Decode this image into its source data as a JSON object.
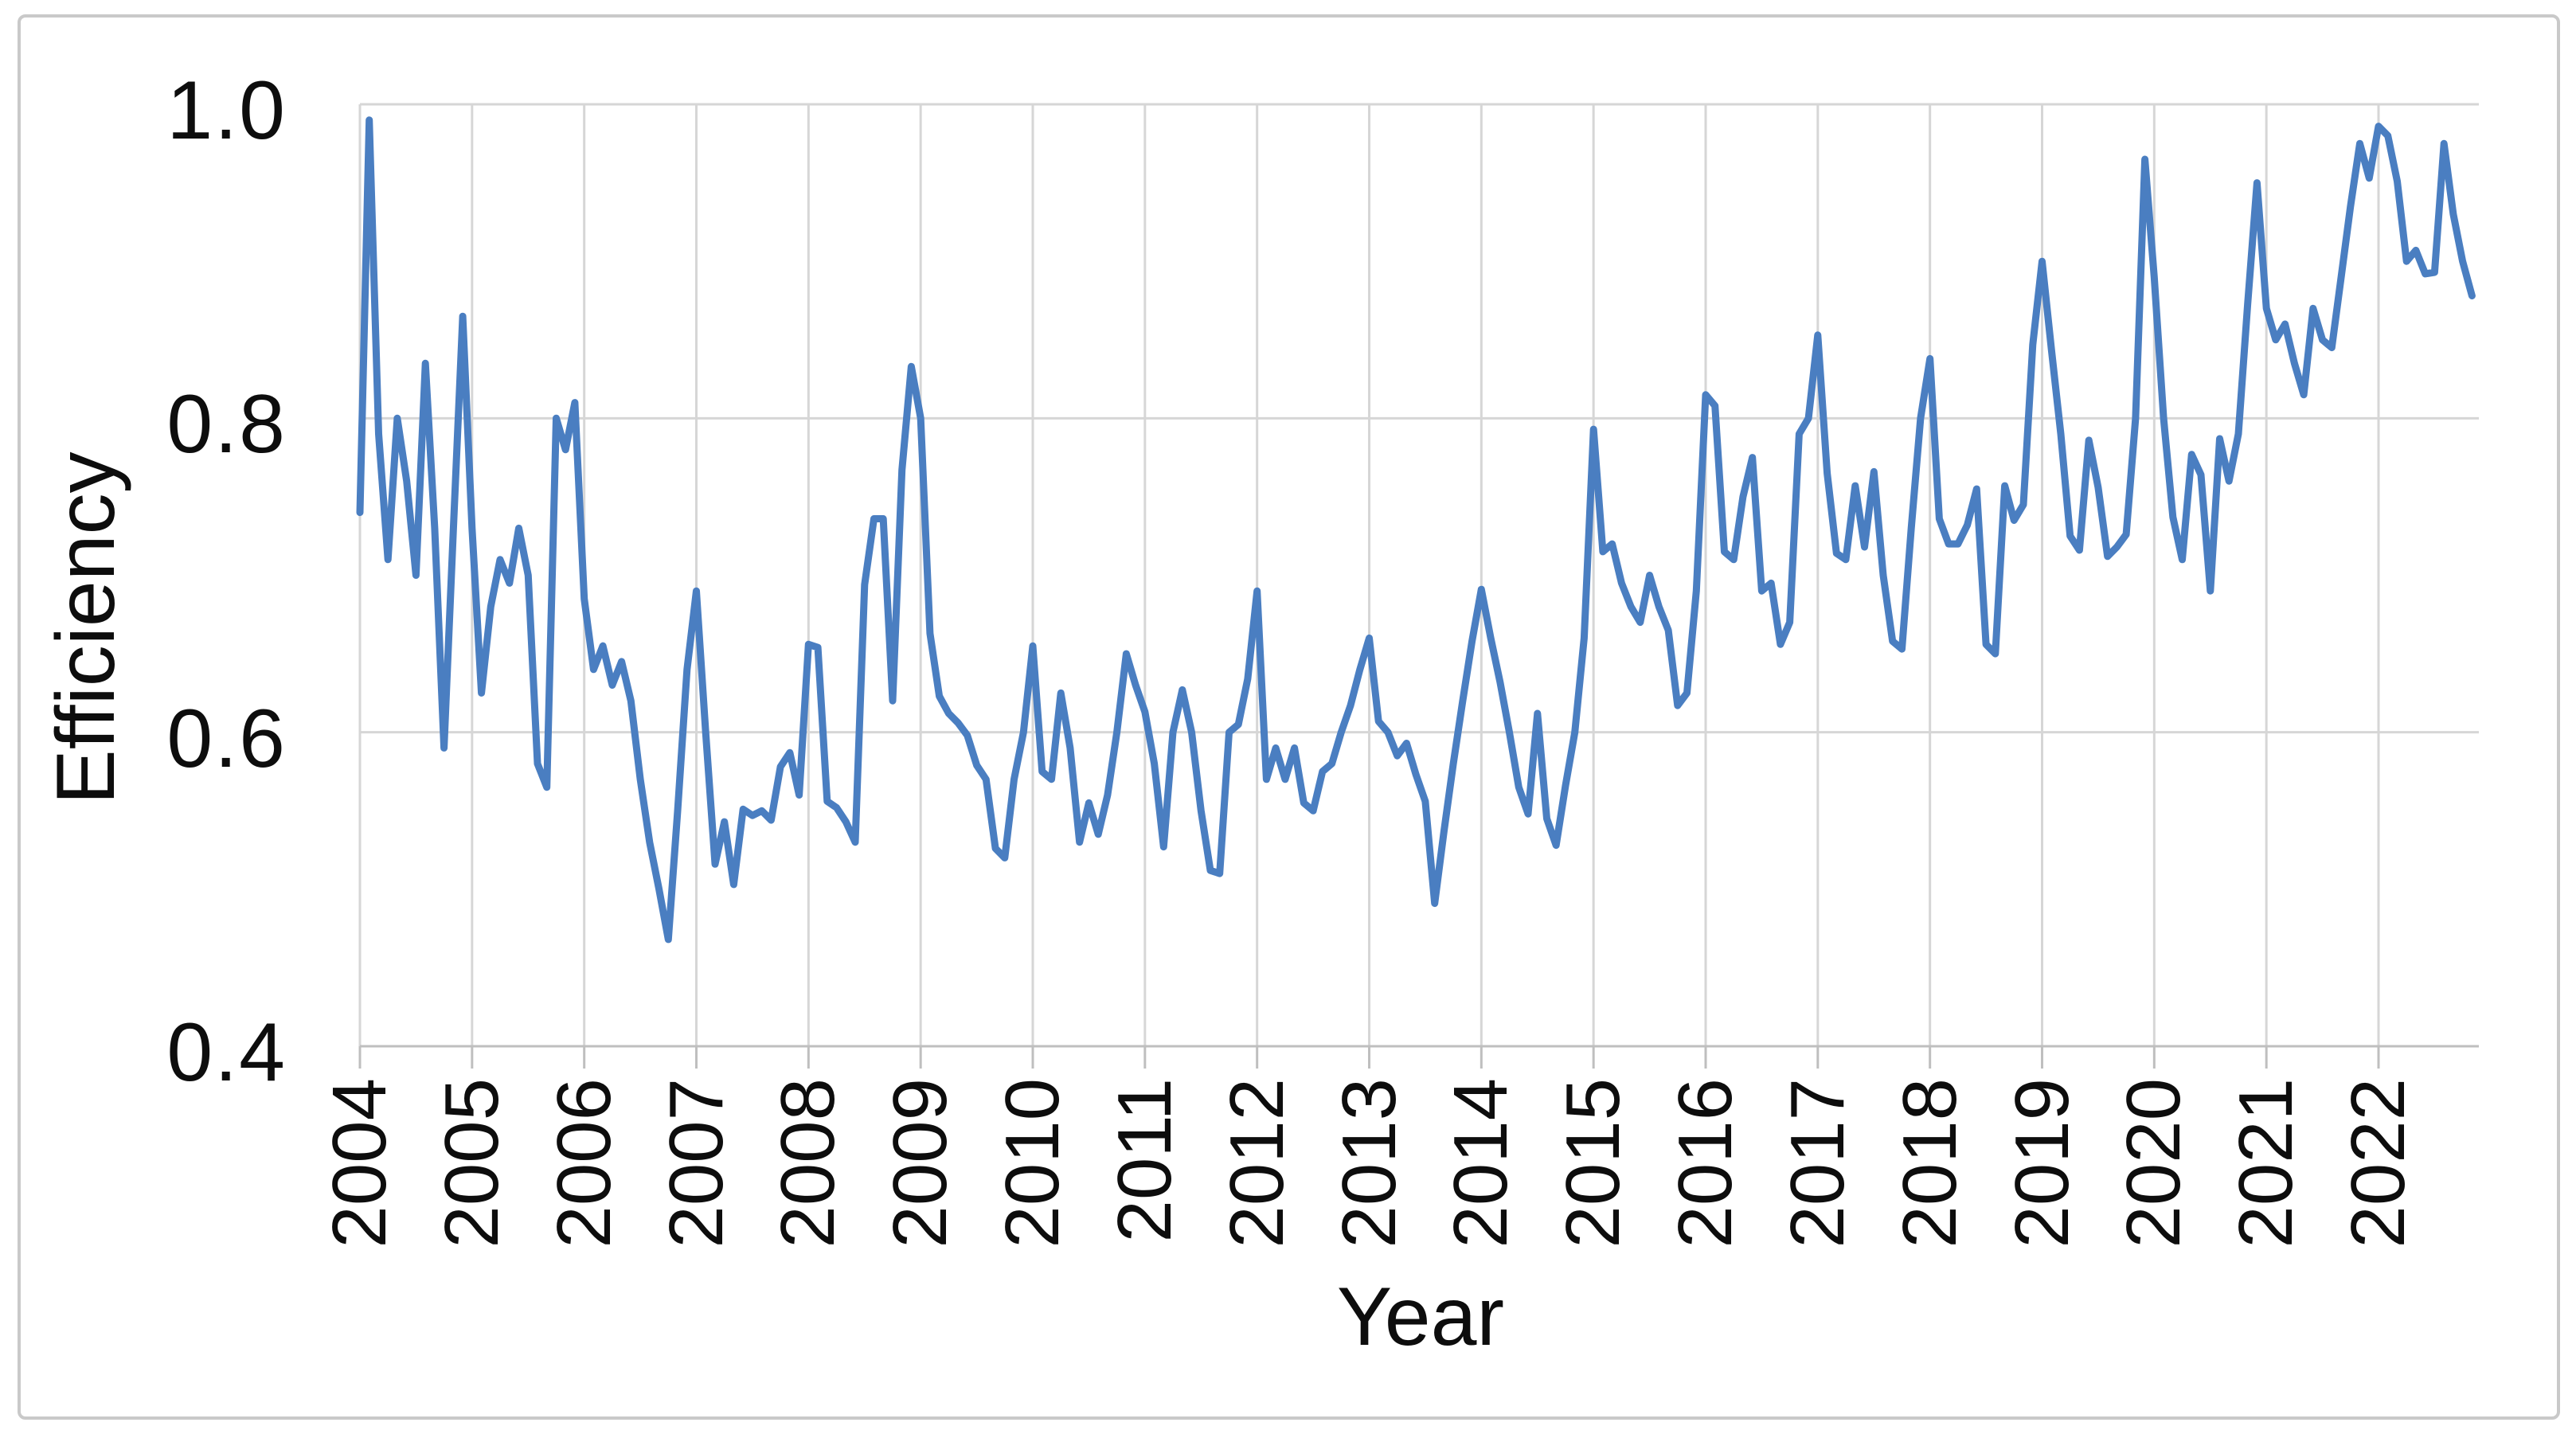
{
  "figure": {
    "background_color": "#ffffff",
    "border_color": "#c9c9c9",
    "text_color": "#0d0d0d",
    "gridline_color": "#d6d6d6",
    "axis_color": "#bfbfbf"
  },
  "chart_data": {
    "type": "line",
    "title": "",
    "xlabel": "Year",
    "ylabel": "Efficiency",
    "ylim": [
      0.4,
      1.0
    ],
    "y_ticks": [
      1.0,
      0.8,
      0.6,
      0.4
    ],
    "y_tick_labels": [
      "1.0",
      "0.8",
      "0.6",
      "0.4"
    ],
    "x_tick_labels": [
      "2004",
      "2005",
      "2006",
      "2007",
      "2008",
      "2009",
      "2010",
      "2011",
      "2012",
      "2013",
      "2014",
      "2015",
      "2016",
      "2017",
      "2018",
      "2019",
      "2020",
      "2021",
      "2022"
    ],
    "grid": true,
    "legend_position": "none",
    "frequency": "monthly",
    "start": "2004-01",
    "end": "2022-11",
    "series": [
      {
        "name": "Efficiency",
        "color": "#4a7ec1",
        "values": [
          0.74,
          0.99,
          0.79,
          0.71,
          0.8,
          0.76,
          0.7,
          0.835,
          0.73,
          0.59,
          0.73,
          0.865,
          0.73,
          0.625,
          0.68,
          0.71,
          0.695,
          0.73,
          0.7,
          0.58,
          0.565,
          0.8,
          0.78,
          0.81,
          0.685,
          0.64,
          0.655,
          0.63,
          0.645,
          0.62,
          0.57,
          0.53,
          0.5,
          0.468,
          0.55,
          0.64,
          0.69,
          0.6,
          0.516,
          0.543,
          0.503,
          0.551,
          0.547,
          0.55,
          0.544,
          0.578,
          0.587,
          0.56,
          0.656,
          0.654,
          0.556,
          0.552,
          0.543,
          0.53,
          0.694,
          0.736,
          0.736,
          0.62,
          0.767,
          0.833,
          0.8,
          0.663,
          0.623,
          0.612,
          0.606,
          0.598,
          0.579,
          0.57,
          0.526,
          0.52,
          0.57,
          0.6,
          0.655,
          0.575,
          0.57,
          0.625,
          0.59,
          0.53,
          0.555,
          0.535,
          0.56,
          0.6,
          0.65,
          0.63,
          0.613,
          0.58,
          0.527,
          0.6,
          0.627,
          0.6,
          0.55,
          0.512,
          0.51,
          0.6,
          0.605,
          0.634,
          0.69,
          0.57,
          0.59,
          0.57,
          0.59,
          0.555,
          0.55,
          0.575,
          0.58,
          0.6,
          0.617,
          0.64,
          0.66,
          0.607,
          0.6,
          0.585,
          0.593,
          0.573,
          0.556,
          0.491,
          0.537,
          0.58,
          0.62,
          0.658,
          0.691,
          0.66,
          0.632,
          0.6,
          0.565,
          0.548,
          0.612,
          0.545,
          0.528,
          0.566,
          0.6,
          0.66,
          0.793,
          0.715,
          0.72,
          0.695,
          0.68,
          0.67,
          0.7,
          0.68,
          0.665,
          0.617,
          0.625,
          0.69,
          0.815,
          0.808,
          0.715,
          0.71,
          0.75,
          0.775,
          0.69,
          0.695,
          0.656,
          0.67,
          0.79,
          0.8,
          0.853,
          0.765,
          0.714,
          0.71,
          0.757,
          0.718,
          0.766,
          0.7,
          0.658,
          0.653,
          0.73,
          0.8,
          0.838,
          0.736,
          0.72,
          0.72,
          0.732,
          0.755,
          0.656,
          0.65,
          0.757,
          0.735,
          0.745,
          0.847,
          0.9,
          0.844,
          0.79,
          0.725,
          0.716,
          0.786,
          0.756,
          0.712,
          0.718,
          0.726,
          0.8,
          0.965,
          0.89,
          0.8,
          0.737,
          0.71,
          0.777,
          0.764,
          0.69,
          0.787,
          0.76,
          0.79,
          0.873,
          0.95,
          0.87,
          0.85,
          0.86,
          0.835,
          0.815,
          0.87,
          0.85,
          0.845,
          0.89,
          0.935,
          0.975,
          0.953,
          0.986,
          0.98,
          0.951,
          0.9,
          0.907,
          0.892,
          0.893,
          0.975,
          0.93,
          0.9,
          0.878
        ]
      }
    ]
  }
}
